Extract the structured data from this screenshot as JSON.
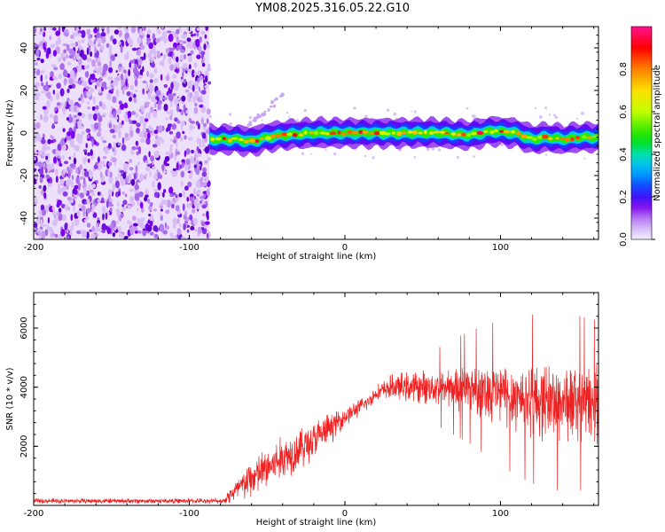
{
  "title": "YM08.2025.316.05.22.G10",
  "colors": {
    "snr_line": "#ee2222",
    "axis": "#000000"
  },
  "chart_data": [
    {
      "type": "heatmap",
      "name": "spectrogram",
      "xlabel": "Height of straight line (km)",
      "ylabel": "Frequency (Hz)",
      "xlim": [
        -200,
        163
      ],
      "ylim": [
        -50,
        50
      ],
      "x_ticks": [
        -200,
        -100,
        0,
        100
      ],
      "x_tick_labels": [
        "-200",
        "-100",
        "0",
        "100"
      ],
      "y_ticks": [
        -40,
        -20,
        0,
        20,
        40
      ],
      "y_tick_labels": [
        "-40",
        "-20",
        "0",
        "20",
        "40"
      ],
      "noise_region_x": [
        -200,
        -87
      ],
      "signal_trace": {
        "x": [
          -87,
          -70,
          -60,
          -50,
          -40,
          -20,
          0,
          20,
          40,
          60,
          80,
          95,
          110,
          120,
          130,
          140,
          150,
          163
        ],
        "y": [
          -3,
          -3,
          -4,
          -2,
          -1,
          0,
          0,
          0,
          0,
          0,
          -1,
          1,
          0,
          -3,
          -2,
          -3,
          -2,
          -2
        ]
      },
      "colorbar": {
        "label": "Normalized spectral amplitude",
        "range": [
          0,
          1
        ],
        "ticks": [
          "0.0",
          "0.2",
          "0.4",
          "0.6",
          "0.8"
        ]
      }
    },
    {
      "type": "line",
      "name": "snr",
      "xlabel": "Height of straight line (km)",
      "ylabel": "SNR (10 * v/v)",
      "xlim": [
        -200,
        163
      ],
      "ylim": [
        0,
        7200
      ],
      "x_ticks": [
        -200,
        -100,
        0,
        100
      ],
      "x_tick_labels": [
        "-200",
        "-100",
        "0",
        "100"
      ],
      "y_ticks": [
        2000,
        4000,
        6000
      ],
      "y_tick_labels": [
        "2000",
        "4000",
        "6000"
      ],
      "envelope": {
        "x": [
          -200,
          -78,
          -75,
          -60,
          -40,
          -20,
          0,
          15,
          20,
          30,
          40,
          60,
          80,
          100,
          120,
          140,
          163
        ],
        "center": [
          150,
          150,
          300,
          900,
          1600,
          2200,
          3000,
          3500,
          3800,
          4000,
          4000,
          4000,
          4000,
          3800,
          3600,
          3500,
          3400
        ],
        "spread": [
          100,
          100,
          300,
          800,
          900,
          800,
          400,
          300,
          300,
          500,
          600,
          700,
          1000,
          1300,
          1500,
          1600,
          1500
        ]
      }
    }
  ]
}
